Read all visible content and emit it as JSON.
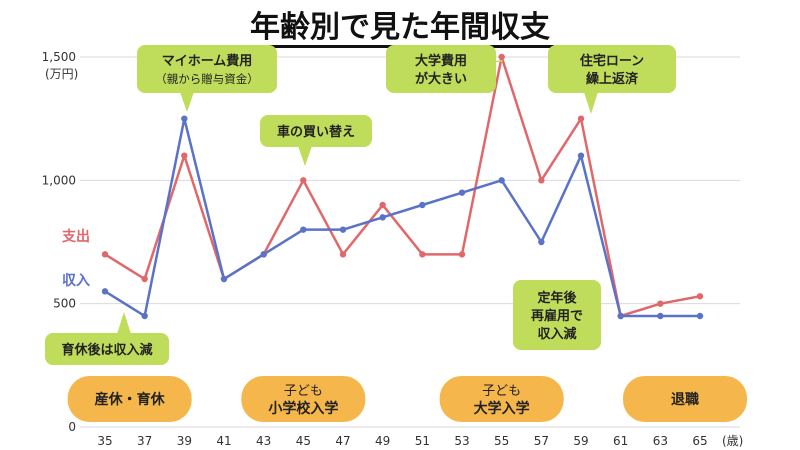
{
  "title": "年齢別で見た年間収支",
  "chart_data": {
    "type": "line",
    "x": [
      35,
      37,
      39,
      41,
      43,
      45,
      47,
      49,
      51,
      53,
      55,
      57,
      59,
      61,
      63,
      65
    ],
    "x_unit": "(歳)",
    "ylim": [
      0,
      1500
    ],
    "yticks": [
      0,
      500,
      1000,
      1500
    ],
    "ytick_labels": [
      "0",
      "500",
      "1,000",
      "1,500"
    ],
    "y_unit": "(万円)",
    "grid": true,
    "series": [
      {
        "name": "支出",
        "color": "#e0686b",
        "values": [
          700,
          600,
          1100,
          600,
          700,
          1000,
          700,
          900,
          700,
          700,
          1500,
          1000,
          1250,
          450,
          500,
          530
        ]
      },
      {
        "name": "収入",
        "color": "#5a72c8",
        "values": [
          550,
          450,
          1250,
          600,
          700,
          800,
          800,
          850,
          900,
          950,
          1000,
          750,
          1100,
          450,
          450,
          450
        ]
      }
    ],
    "annotations": [
      {
        "lines": [
          "マイホーム費用",
          "（親から贈与資金）"
        ]
      },
      {
        "lines": [
          "車の買い替え"
        ]
      },
      {
        "lines": [
          "大学費用",
          "が大きい"
        ]
      },
      {
        "lines": [
          "住宅ローン",
          "繰上返済"
        ]
      },
      {
        "lines": [
          "育休後は収入減"
        ]
      },
      {
        "lines": [
          "定年後",
          "再雇用で",
          "収入減"
        ]
      }
    ],
    "events": [
      {
        "lines": [
          "産休・育休"
        ]
      },
      {
        "lines": [
          "子ども",
          "小学校入学"
        ]
      },
      {
        "lines": [
          "子ども",
          "大学入学"
        ]
      },
      {
        "lines": [
          "退職"
        ]
      }
    ]
  }
}
